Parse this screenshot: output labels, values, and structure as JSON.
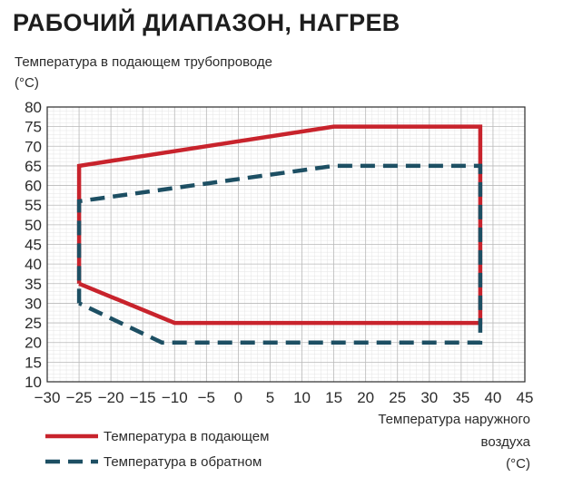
{
  "title": "РАБОЧИЙ ДИАПАЗОН, НАГРЕВ",
  "chart_data": {
    "type": "line",
    "ylabel_line1": "Температура в подающем трубопроводе",
    "ylabel_line2": "(°C)",
    "xlabel_line1": "Температура наружного",
    "xlabel_line2": "воздуха",
    "xlabel_line3": "(°C)",
    "xlim": [
      -30,
      45
    ],
    "ylim": [
      10,
      80
    ],
    "xticks": [
      -30,
      -25,
      -20,
      -15,
      -10,
      -5,
      0,
      5,
      10,
      15,
      20,
      25,
      30,
      35,
      40,
      45
    ],
    "yticks": [
      10,
      15,
      20,
      25,
      30,
      35,
      40,
      45,
      50,
      55,
      60,
      65,
      70,
      75,
      80
    ],
    "grid": true,
    "legend_position": "bottom-left",
    "series": [
      {
        "name": "Температура в подающем",
        "style": "solid",
        "color": "#c8232c",
        "points": [
          [
            -25,
            35
          ],
          [
            -25,
            65
          ],
          [
            15,
            75
          ],
          [
            38,
            75
          ],
          [
            38,
            25
          ],
          [
            -10,
            25
          ],
          [
            -25,
            35
          ]
        ]
      },
      {
        "name": "Температура в обратном",
        "style": "dashed",
        "color": "#1d4f63",
        "points": [
          [
            -25,
            30
          ],
          [
            -25,
            56
          ],
          [
            15,
            65
          ],
          [
            38,
            65
          ],
          [
            38,
            20
          ],
          [
            -12,
            20
          ],
          [
            -25,
            30
          ]
        ]
      }
    ]
  }
}
